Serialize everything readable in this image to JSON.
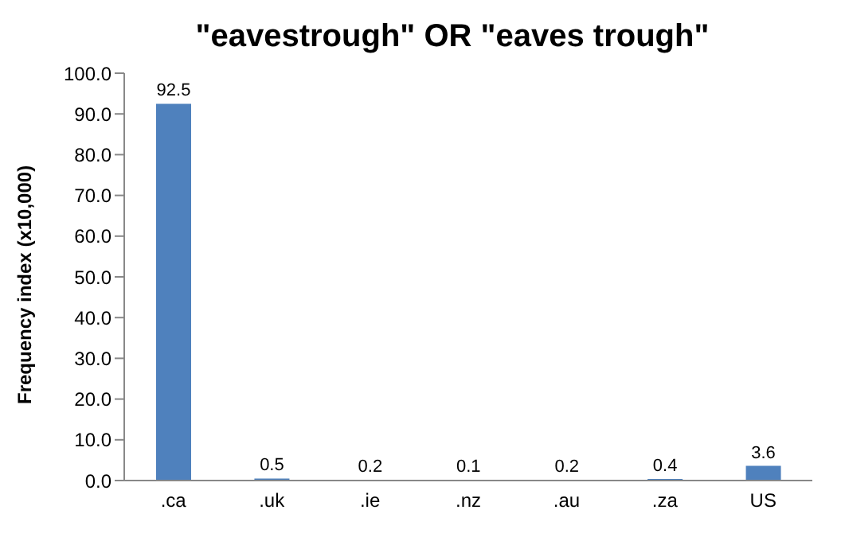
{
  "chart_data": {
    "type": "bar",
    "title": "\"eavestrough\" OR \"eaves trough\"",
    "ylabel": "Frequency index (x10,000)",
    "categories": [
      ".ca",
      ".uk",
      ".ie",
      ".nz",
      ".au",
      ".za",
      "US"
    ],
    "values": [
      92.5,
      0.5,
      0.2,
      0.1,
      0.2,
      0.4,
      3.6
    ],
    "color": "#4f81bd",
    "ylim": [
      0,
      100
    ],
    "yticks": [
      {
        "value": 0,
        "label": "0.0"
      },
      {
        "value": 10,
        "label": "10.0"
      },
      {
        "value": 20,
        "label": "20.0"
      },
      {
        "value": 30,
        "label": "30.0"
      },
      {
        "value": 40,
        "label": "40.0"
      },
      {
        "value": 50,
        "label": "50.0"
      },
      {
        "value": 60,
        "label": "60.0"
      },
      {
        "value": 70,
        "label": "70.0"
      },
      {
        "value": 80,
        "label": "80.0"
      },
      {
        "value": 90,
        "label": "90.0"
      },
      {
        "value": 100,
        "label": "100.0"
      }
    ],
    "data_labels": true,
    "grid": false,
    "legend": false
  }
}
